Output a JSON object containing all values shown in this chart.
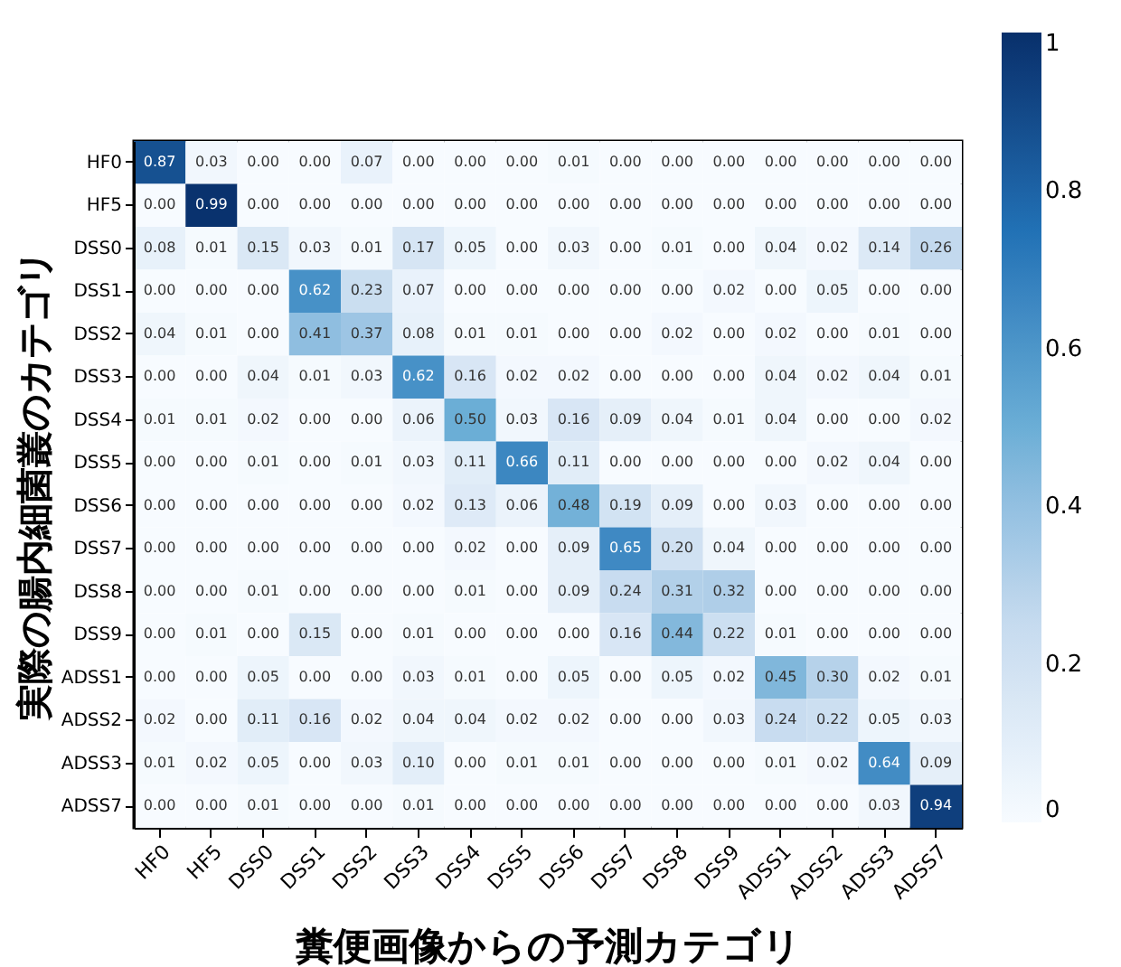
{
  "chart_data": {
    "type": "heatmap",
    "xlabel": "糞便画像からの予測カテゴリ",
    "ylabel": "実際の腸内細菌叢のカテゴリ",
    "categories": [
      "HF0",
      "HF5",
      "DSS0",
      "DSS1",
      "DSS2",
      "DSS3",
      "DSS4",
      "DSS5",
      "DSS6",
      "DSS7",
      "DSS8",
      "DSS9",
      "ADSS1",
      "ADSS2",
      "ADSS3",
      "ADSS7"
    ],
    "y_categories": [
      "HF0",
      "HF5",
      "DSS0",
      "DSS1",
      "DSS2",
      "DSS3",
      "DSS4",
      "DSS5",
      "DSS6",
      "DSS7",
      "DSS8",
      "DSS9",
      "ADSS1",
      "ADSS2",
      "ADSS3",
      "ADSS7"
    ],
    "cells": [
      [
        0.87,
        0.03,
        0.0,
        0.0,
        0.07,
        0.0,
        0.0,
        0.0,
        0.01,
        0.0,
        0.0,
        0.0,
        0.0,
        0.0,
        0.0,
        0.0
      ],
      [
        0.0,
        0.99,
        0.0,
        0.0,
        0.0,
        0.0,
        0.0,
        0.0,
        0.0,
        0.0,
        0.0,
        0.0,
        0.0,
        0.0,
        0.0,
        0.0
      ],
      [
        0.08,
        0.01,
        0.15,
        0.03,
        0.01,
        0.17,
        0.05,
        0.0,
        0.03,
        0.0,
        0.01,
        0.0,
        0.04,
        0.02,
        0.14,
        0.26
      ],
      [
        0.0,
        0.0,
        0.0,
        0.62,
        0.23,
        0.07,
        0.0,
        0.0,
        0.0,
        0.0,
        0.0,
        0.02,
        0.0,
        0.05,
        0.0,
        0.0
      ],
      [
        0.04,
        0.01,
        0.0,
        0.41,
        0.37,
        0.08,
        0.01,
        0.01,
        0.0,
        0.0,
        0.02,
        0.0,
        0.02,
        0.0,
        0.01,
        0.0
      ],
      [
        0.0,
        0.0,
        0.04,
        0.01,
        0.03,
        0.62,
        0.16,
        0.02,
        0.02,
        0.0,
        0.0,
        0.0,
        0.04,
        0.02,
        0.04,
        0.01
      ],
      [
        0.01,
        0.01,
        0.02,
        0.0,
        0.0,
        0.06,
        0.5,
        0.03,
        0.16,
        0.09,
        0.04,
        0.01,
        0.04,
        0.0,
        0.0,
        0.02
      ],
      [
        0.0,
        0.0,
        0.01,
        0.0,
        0.01,
        0.03,
        0.11,
        0.66,
        0.11,
        0.0,
        0.0,
        0.0,
        0.0,
        0.02,
        0.04,
        0.0
      ],
      [
        0.0,
        0.0,
        0.0,
        0.0,
        0.0,
        0.02,
        0.13,
        0.06,
        0.48,
        0.19,
        0.09,
        0.0,
        0.03,
        0.0,
        0.0,
        0.0
      ],
      [
        0.0,
        0.0,
        0.0,
        0.0,
        0.0,
        0.0,
        0.02,
        0.0,
        0.09,
        0.65,
        0.2,
        0.04,
        0.0,
        0.0,
        0.0,
        0.0
      ],
      [
        0.0,
        0.0,
        0.01,
        0.0,
        0.0,
        0.0,
        0.01,
        0.0,
        0.09,
        0.24,
        0.31,
        0.32,
        0.0,
        0.0,
        0.0,
        0.0
      ],
      [
        0.0,
        0.01,
        0.0,
        0.15,
        0.0,
        0.01,
        0.0,
        0.0,
        0.0,
        0.16,
        0.44,
        0.22,
        0.01,
        0.0,
        0.0,
        0.0
      ],
      [
        0.0,
        0.0,
        0.05,
        0.0,
        0.0,
        0.03,
        0.01,
        0.0,
        0.05,
        0.0,
        0.05,
        0.02,
        0.45,
        0.3,
        0.02,
        0.01
      ],
      [
        0.02,
        0.0,
        0.11,
        0.16,
        0.02,
        0.04,
        0.04,
        0.02,
        0.02,
        0.0,
        0.0,
        0.03,
        0.24,
        0.22,
        0.05,
        0.03
      ],
      [
        0.01,
        0.02,
        0.05,
        0.0,
        0.03,
        0.1,
        0.0,
        0.01,
        0.01,
        0.0,
        0.0,
        0.0,
        0.01,
        0.02,
        0.64,
        0.09
      ],
      [
        0.0,
        0.0,
        0.01,
        0.0,
        0.0,
        0.01,
        0.0,
        0.0,
        0.0,
        0.0,
        0.0,
        0.0,
        0.0,
        0.0,
        0.03,
        0.94
      ]
    ],
    "cell_labels": [
      [
        "0.87",
        "0.03",
        "0.00",
        "0.00",
        "0.07",
        "0.00",
        "0.00",
        "0.00",
        "0.01",
        "0.00",
        "0.00",
        "0.00",
        "0.00",
        "0.00",
        "0.00",
        "0.00"
      ],
      [
        "0.00",
        "0.99",
        "0.00",
        "0.00",
        "0.00",
        "0.00",
        "0.00",
        "0.00",
        "0.00",
        "0.00",
        "0.00",
        "0.00",
        "0.00",
        "0.00",
        "0.00",
        "0.00"
      ],
      [
        "0.08",
        "0.01",
        "0.15",
        "0.03",
        "0.01",
        "0.17",
        "0.05",
        "0.00",
        "0.03",
        "0.00",
        "0.01",
        "0.00",
        "0.04",
        "0.02",
        "0.14",
        "0.26"
      ],
      [
        "0.00",
        "0.00",
        "0.00",
        "0.62",
        "0.23",
        "0.07",
        "0.00",
        "0.00",
        "0.00",
        "0.00",
        "0.00",
        "0.02",
        "0.00",
        "0.05",
        "0.00",
        "0.00"
      ],
      [
        "0.04",
        "0.01",
        "0.00",
        "0.41",
        "0.37",
        "0.08",
        "0.01",
        "0.01",
        "0.00",
        "0.00",
        "0.02",
        "0.00",
        "0.02",
        "0.00",
        "0.01",
        "0.00"
      ],
      [
        "0.00",
        "0.00",
        "0.04",
        "0.01",
        "0.03",
        "0.62",
        "0.16",
        "0.02",
        "0.02",
        "0.00",
        "0.00",
        "0.00",
        "0.04",
        "0.02",
        "0.04",
        "0.01"
      ],
      [
        "0.01",
        "0.01",
        "0.02",
        "0.00",
        "0.00",
        "0.06",
        "0.50",
        "0.03",
        "0.16",
        "0.09",
        "0.04",
        "0.01",
        "0.04",
        "0.00",
        "0.00",
        "0.02"
      ],
      [
        "0.00",
        "0.00",
        "0.01",
        "0.00",
        "0.01",
        "0.03",
        "0.11",
        "0.66",
        "0.11",
        "0.00",
        "0.00",
        "0.00",
        "0.00",
        "0.02",
        "0.04",
        "0.00"
      ],
      [
        "0.00",
        "0.00",
        "0.00",
        "0.00",
        "0.00",
        "0.02",
        "0.13",
        "0.06",
        "0.48",
        "0.19",
        "0.09",
        "0.00",
        "0.03",
        "0.00",
        "0.00",
        "0.00"
      ],
      [
        "0.00",
        "0.00",
        "0.00",
        "0.00",
        "0.00",
        "0.00",
        "0.02",
        "0.00",
        "0.09",
        "0.65",
        "0.20",
        "0.04",
        "0.00",
        "0.00",
        "0.00",
        "0.00"
      ],
      [
        "0.00",
        "0.00",
        "0.01",
        "0.00",
        "0.00",
        "0.00",
        "0.01",
        "0.00",
        "0.09",
        "0.24",
        "0.31",
        "0.32",
        "0.00",
        "0.00",
        "0.00",
        "0.00"
      ],
      [
        "0.00",
        "0.01",
        "0.00",
        "0.15",
        "0.00",
        "0.01",
        "0.00",
        "0.00",
        "0.00",
        "0.16",
        "0.44",
        "0.22",
        "0.01",
        "0.00",
        "0.00",
        "0.00"
      ],
      [
        "0.00",
        "0.00",
        "0.05",
        "0.00",
        "0.00",
        "0.03",
        "0.01",
        "0.00",
        "0.05",
        "0.00",
        "0.05",
        "0.02",
        "0.45",
        "0.30",
        "0.02",
        "0.01"
      ],
      [
        "0.02",
        "0.00",
        "0.11",
        "0.16",
        "0.02",
        "0.04",
        "0.04",
        "0.02",
        "0.02",
        "0.00",
        "0.00",
        "0.03",
        "0.24",
        "0.22",
        "0.05",
        "0.03"
      ],
      [
        "0.01",
        "0.02",
        "0.05",
        "0.00",
        "0.03",
        "0.10",
        "0.00",
        "0.01",
        "0.01",
        "0.00",
        "0.00",
        "0.00",
        "0.01",
        "0.02",
        "0.64",
        "0.09"
      ],
      [
        "0.00",
        "0.00",
        "0.01",
        "0.00",
        "0.00",
        "0.01",
        "0.00",
        "0.00",
        "0.00",
        "0.00",
        "0.00",
        "0.00",
        "0.00",
        "0.00",
        "0.03",
        "0.94"
      ]
    ],
    "data_labels": true,
    "clim": [
      0,
      1
    ],
    "cticks": [
      0,
      0.2,
      0.4,
      0.6,
      0.8,
      1
    ]
  }
}
